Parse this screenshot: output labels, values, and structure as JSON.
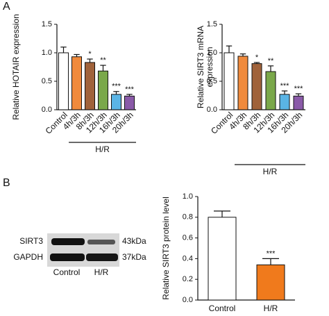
{
  "panel_labels": [
    "A",
    "B"
  ],
  "blot": {
    "rows": [
      "SIRT3",
      "GAPDH"
    ],
    "sizes": [
      "43kDa",
      "37kDa"
    ],
    "lanes": [
      "Control",
      "H/R"
    ]
  },
  "chart_data": [
    {
      "type": "bar",
      "y_label": [
        "Relative HOTAIR expression"
      ],
      "categories": [
        "Control",
        "4h/3h",
        "8h/3h",
        "12h/3h",
        "16h/3h",
        "20h/3h"
      ],
      "values": [
        1.0,
        0.93,
        0.83,
        0.68,
        0.27,
        0.24
      ],
      "errors": [
        0.1,
        0.04,
        0.06,
        0.1,
        0.05,
        0.03
      ],
      "colors": [
        "#ffffff",
        "#f08a3c",
        "#a0623a",
        "#7aa84a",
        "#5ab4e5",
        "#8a5aa8"
      ],
      "annotations": [
        null,
        null,
        "*",
        "**",
        "***",
        "***"
      ],
      "group_label": "H/R",
      "ylim": [
        0,
        1.5
      ],
      "yticks": [
        {
          "value": 0,
          "label": "0.0"
        },
        0.5,
        {
          "value": 1,
          "label": "1.0"
        },
        1.5
      ]
    },
    {
      "type": "bar",
      "y_label": [
        "Relative SIRT3 mRNA",
        "expression"
      ],
      "categories": [
        "Control",
        "4h/3h",
        "8h/3h",
        "12h/3h",
        "16h/3h",
        "20h/3h"
      ],
      "values": [
        1.0,
        0.94,
        0.81,
        0.67,
        0.27,
        0.24
      ],
      "errors": [
        0.12,
        0.04,
        0.02,
        0.1,
        0.06,
        0.04
      ],
      "colors": [
        "#ffffff",
        "#f08a3c",
        "#a0623a",
        "#7aa84a",
        "#5ab4e5",
        "#8a5aa8"
      ],
      "annotations": [
        null,
        null,
        "*",
        "**",
        "***",
        "***"
      ],
      "group_label": "H/R",
      "ylim": [
        0,
        1.5
      ],
      "yticks": [
        {
          "value": 0,
          "label": "0.0"
        },
        0.5,
        {
          "value": 1,
          "label": "1.0"
        },
        1.5
      ]
    },
    {
      "type": "bar",
      "y_label": [
        "Relative SIRT3 protein level"
      ],
      "categories": [
        "Control",
        "H/R"
      ],
      "values": [
        0.8,
        0.34
      ],
      "errors": [
        0.06,
        0.06
      ],
      "colors": [
        "#ffffff",
        "#f07a1c"
      ],
      "annotations": [
        null,
        "***"
      ],
      "ylim": [
        0,
        1.0
      ],
      "yticks": [
        {
          "value": 0,
          "label": "0.0"
        },
        0.2,
        0.4,
        0.6,
        0.8,
        {
          "value": 1,
          "label": "1.0"
        }
      ]
    }
  ]
}
